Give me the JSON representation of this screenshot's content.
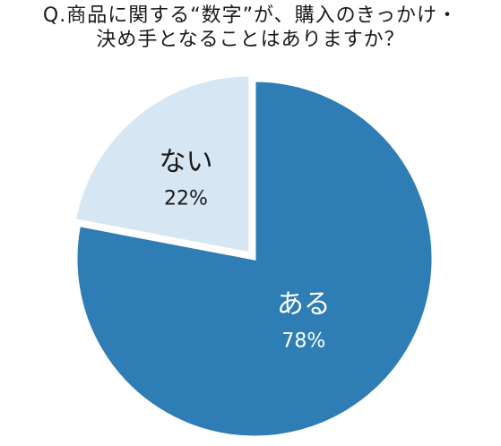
{
  "title_lines": [
    "Q.商品に関する“数字”が、購入のきっかけ・",
    "決め手となることはありますか？"
  ],
  "colors": {
    "aru": "#2e7db5",
    "nai": "#d6e6f3",
    "label_dark": "#1a1a1a",
    "label_light": "#ffffff"
  },
  "chart_data": {
    "type": "pie",
    "title": "Q.商品に関する“数字”が、購入のきっかけ・決め手となることはありますか？",
    "slices": [
      {
        "label": "ある",
        "value": 78,
        "percent_label": "78%"
      },
      {
        "label": "ない",
        "value": 22,
        "percent_label": "22%"
      }
    ]
  }
}
